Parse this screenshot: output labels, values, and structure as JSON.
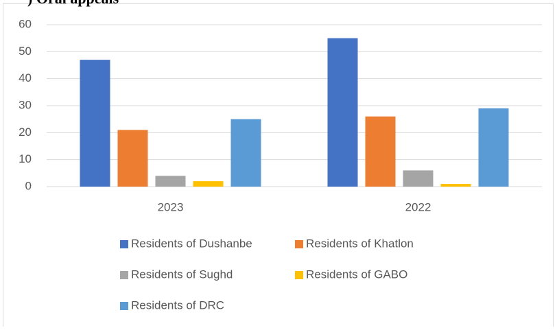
{
  "caption": ") Oral appeals",
  "chart_data": {
    "type": "bar",
    "categories": [
      "2023",
      "2022"
    ],
    "series": [
      {
        "name": "Residents of Dushanbe",
        "color": "#4472c4",
        "values": [
          47,
          55
        ]
      },
      {
        "name": "Residents of Khatlon",
        "color": "#ed7d31",
        "values": [
          21,
          26
        ]
      },
      {
        "name": "Residents of Sughd",
        "color": "#a5a5a5",
        "values": [
          4,
          6
        ]
      },
      {
        "name": "Residents of GABO",
        "color": "#ffc000",
        "values": [
          2,
          1
        ]
      },
      {
        "name": "Residents of DRC",
        "color": "#5b9bd5",
        "values": [
          25,
          29
        ]
      }
    ],
    "ylim": [
      0,
      60
    ],
    "yticks": [
      0,
      10,
      20,
      30,
      40,
      50,
      60
    ],
    "grid": true
  }
}
